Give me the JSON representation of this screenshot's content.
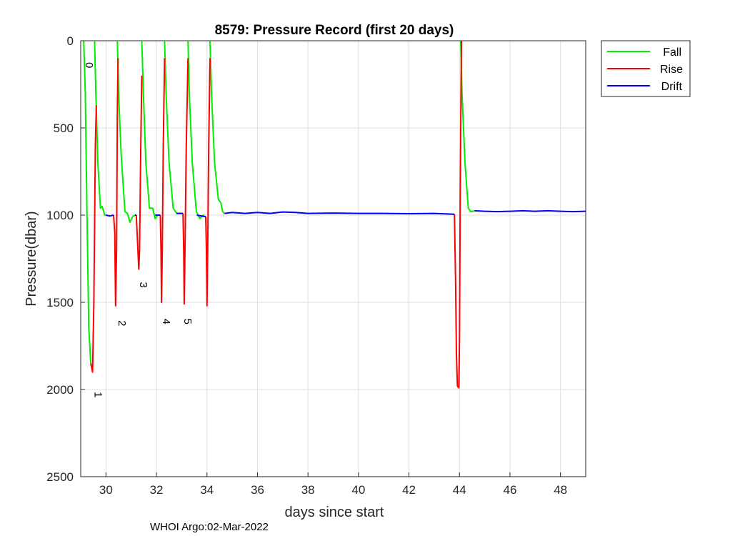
{
  "chart_data": {
    "type": "line",
    "title": "8579: Pressure Record (first 20 days)",
    "xlabel": "days since start",
    "ylabel": "Pressure(dbar)",
    "xlim": [
      29,
      49
    ],
    "ylim": [
      0,
      2500
    ],
    "y_reversed": true,
    "grid": true,
    "xticks": [
      30,
      32,
      34,
      36,
      38,
      40,
      42,
      44,
      46,
      48
    ],
    "yticks": [
      0,
      500,
      1000,
      1500,
      2000,
      2500
    ],
    "legend_position": "outside-top-right",
    "series": [
      {
        "name": "Fall",
        "color": "#00ee00",
        "segments": [
          [
            [
              29.12,
              0
            ],
            [
              29.18,
              300
            ],
            [
              29.25,
              1000
            ],
            [
              29.32,
              1650
            ],
            [
              29.4,
              1850
            ]
          ],
          [
            [
              29.55,
              0
            ],
            [
              29.6,
              300
            ],
            [
              29.68,
              700
            ],
            [
              29.78,
              960
            ],
            [
              29.85,
              950
            ],
            [
              29.95,
              1000
            ],
            [
              30.0,
              1000
            ]
          ],
          [
            [
              30.45,
              0
            ],
            [
              30.5,
              300
            ],
            [
              30.6,
              650
            ],
            [
              30.75,
              980
            ],
            [
              30.85,
              990
            ],
            [
              30.95,
              1040
            ],
            [
              31.05,
              1010
            ],
            [
              31.15,
              1000
            ]
          ],
          [
            [
              31.42,
              0
            ],
            [
              31.48,
              300
            ],
            [
              31.58,
              700
            ],
            [
              31.72,
              960
            ],
            [
              31.85,
              960
            ],
            [
              31.95,
              1020
            ],
            [
              32.05,
              1000
            ],
            [
              32.15,
              1000
            ]
          ],
          [
            [
              32.32,
              0
            ],
            [
              32.38,
              300
            ],
            [
              32.5,
              700
            ],
            [
              32.66,
              960
            ],
            [
              32.8,
              990
            ],
            [
              32.9,
              990
            ],
            [
              33.0,
              990
            ]
          ],
          [
            [
              33.25,
              0
            ],
            [
              33.3,
              300
            ],
            [
              33.42,
              700
            ],
            [
              33.58,
              980
            ],
            [
              33.72,
              1020
            ],
            [
              33.85,
              1000
            ],
            [
              33.95,
              1010
            ]
          ],
          [
            [
              34.12,
              0
            ],
            [
              34.18,
              300
            ],
            [
              34.3,
              700
            ],
            [
              34.45,
              910
            ],
            [
              34.55,
              930
            ],
            [
              34.62,
              980
            ],
            [
              34.7,
              990
            ]
          ],
          [
            [
              44.05,
              0
            ],
            [
              44.1,
              300
            ],
            [
              44.22,
              700
            ],
            [
              44.35,
              960
            ],
            [
              44.45,
              980
            ],
            [
              44.6,
              975
            ]
          ]
        ]
      },
      {
        "name": "Rise",
        "color": "#ff0000",
        "segments": [
          [
            [
              29.4,
              1850
            ],
            [
              29.47,
              1900
            ],
            [
              29.52,
              1500
            ],
            [
              29.58,
              600
            ],
            [
              29.62,
              370
            ]
          ],
          [
            [
              30.3,
              1000
            ],
            [
              30.35,
              1100
            ],
            [
              30.38,
              1520
            ],
            [
              30.42,
              1200
            ],
            [
              30.45,
              400
            ],
            [
              30.48,
              100
            ]
          ],
          [
            [
              31.2,
              1000
            ],
            [
              31.25,
              1150
            ],
            [
              31.3,
              1310
            ],
            [
              31.33,
              1200
            ],
            [
              31.38,
              600
            ],
            [
              31.42,
              200
            ]
          ],
          [
            [
              32.15,
              1000
            ],
            [
              32.18,
              1200
            ],
            [
              32.2,
              1500
            ],
            [
              32.23,
              1200
            ],
            [
              32.27,
              600
            ],
            [
              32.32,
              100
            ]
          ],
          [
            [
              33.05,
              990
            ],
            [
              33.08,
              1200
            ],
            [
              33.1,
              1510
            ],
            [
              33.13,
              1200
            ],
            [
              33.18,
              600
            ],
            [
              33.25,
              100
            ]
          ],
          [
            [
              33.95,
              1010
            ],
            [
              33.98,
              1200
            ],
            [
              34.0,
              1520
            ],
            [
              34.03,
              1200
            ],
            [
              34.07,
              600
            ],
            [
              34.12,
              100
            ]
          ],
          [
            [
              43.8,
              995
            ],
            [
              43.85,
              1400
            ],
            [
              43.88,
              1800
            ],
            [
              43.92,
              1980
            ],
            [
              43.98,
              1990
            ],
            [
              44.0,
              1700
            ],
            [
              44.03,
              900
            ],
            [
              44.06,
              300
            ],
            [
              44.08,
              0
            ]
          ]
        ]
      },
      {
        "name": "Drift",
        "color": "#0000ff",
        "segments": [
          [
            [
              30.0,
              1000
            ],
            [
              30.15,
              1005
            ],
            [
              30.3,
              1000
            ]
          ],
          [
            [
              31.15,
              1000
            ],
            [
              31.2,
              1000
            ]
          ],
          [
            [
              31.95,
              1000
            ],
            [
              32.15,
              1000
            ]
          ],
          [
            [
              32.8,
              990
            ],
            [
              33.05,
              990
            ]
          ],
          [
            [
              33.6,
              1000
            ],
            [
              33.95,
              1010
            ]
          ],
          [
            [
              34.7,
              990
            ],
            [
              35.0,
              985
            ],
            [
              35.5,
              990
            ],
            [
              36.0,
              985
            ],
            [
              36.5,
              990
            ],
            [
              37.0,
              982
            ],
            [
              37.5,
              985
            ],
            [
              38.0,
              990
            ],
            [
              39.0,
              988
            ],
            [
              40.0,
              990
            ],
            [
              41.0,
              990
            ],
            [
              42.0,
              992
            ],
            [
              43.0,
              990
            ],
            [
              43.8,
              995
            ]
          ],
          [
            [
              44.6,
              975
            ],
            [
              45.0,
              978
            ],
            [
              45.5,
              980
            ],
            [
              46.0,
              978
            ],
            [
              46.5,
              975
            ],
            [
              47.0,
              978
            ],
            [
              47.5,
              975
            ],
            [
              48.0,
              978
            ],
            [
              48.5,
              980
            ],
            [
              49.0,
              978
            ]
          ]
        ]
      }
    ],
    "annotations": [
      {
        "text": "0",
        "x": 29.2,
        "y": 140
      },
      {
        "text": "1",
        "x": 29.55,
        "y": 2030
      },
      {
        "text": "2",
        "x": 30.5,
        "y": 1620
      },
      {
        "text": "3",
        "x": 31.35,
        "y": 1400
      },
      {
        "text": "4",
        "x": 32.25,
        "y": 1610
      },
      {
        "text": "5",
        "x": 33.1,
        "y": 1610
      }
    ]
  },
  "footer": "WHOI Argo:02-Mar-2022"
}
